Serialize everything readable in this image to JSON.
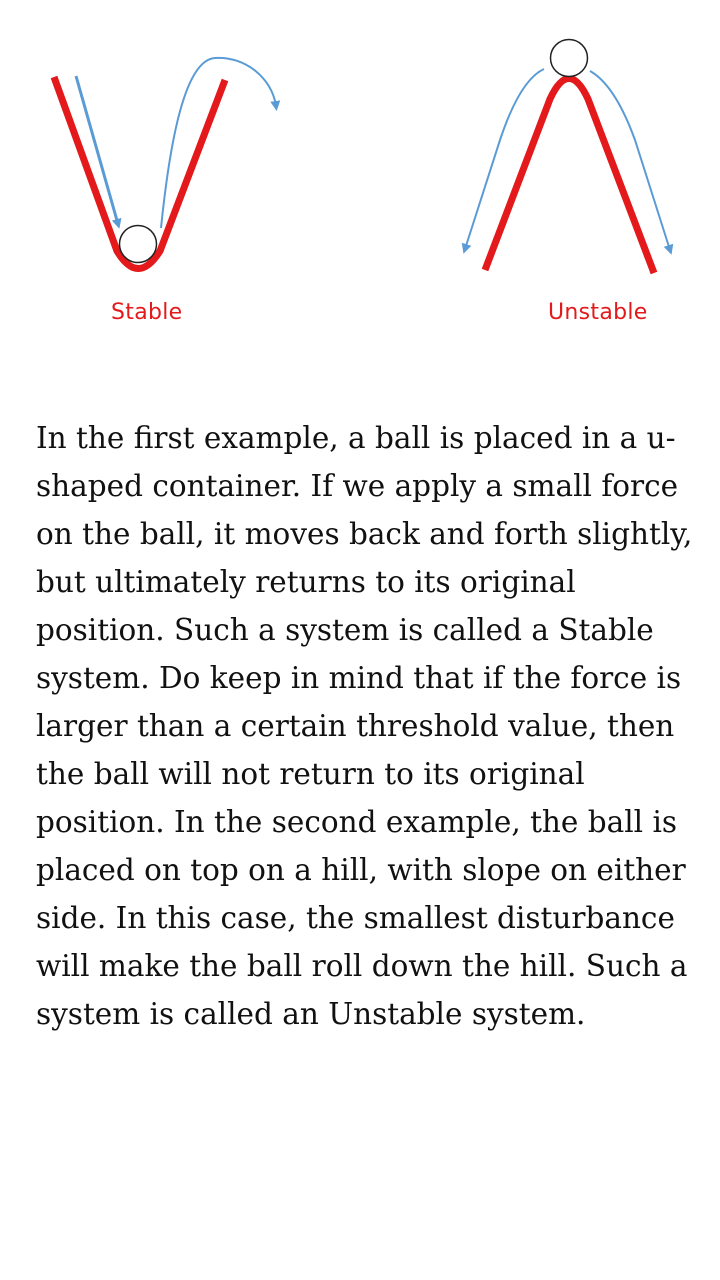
{
  "diagram": {
    "labels": {
      "stable": "Stable",
      "unstable": "Unstable"
    },
    "colors": {
      "surface": "#e3191b",
      "arrow": "#5b9bd5",
      "ball_outline": "#222222"
    }
  },
  "article": {
    "paragraph": "In the first example, a ball is placed in a u-shaped container. If we apply a small force on the ball, it moves back and forth slightly, but ultimately returns to its original position. Such a system is called a Stable system. Do keep in mind that if the force is larger than a certain threshold value, then the ball will not return to its original position. In the second example, the ball is placed on top on a hill, with slope on either side. In this case, the smallest disturbance will make the ball roll down the hill. Such a system is called an Unstable system."
  }
}
